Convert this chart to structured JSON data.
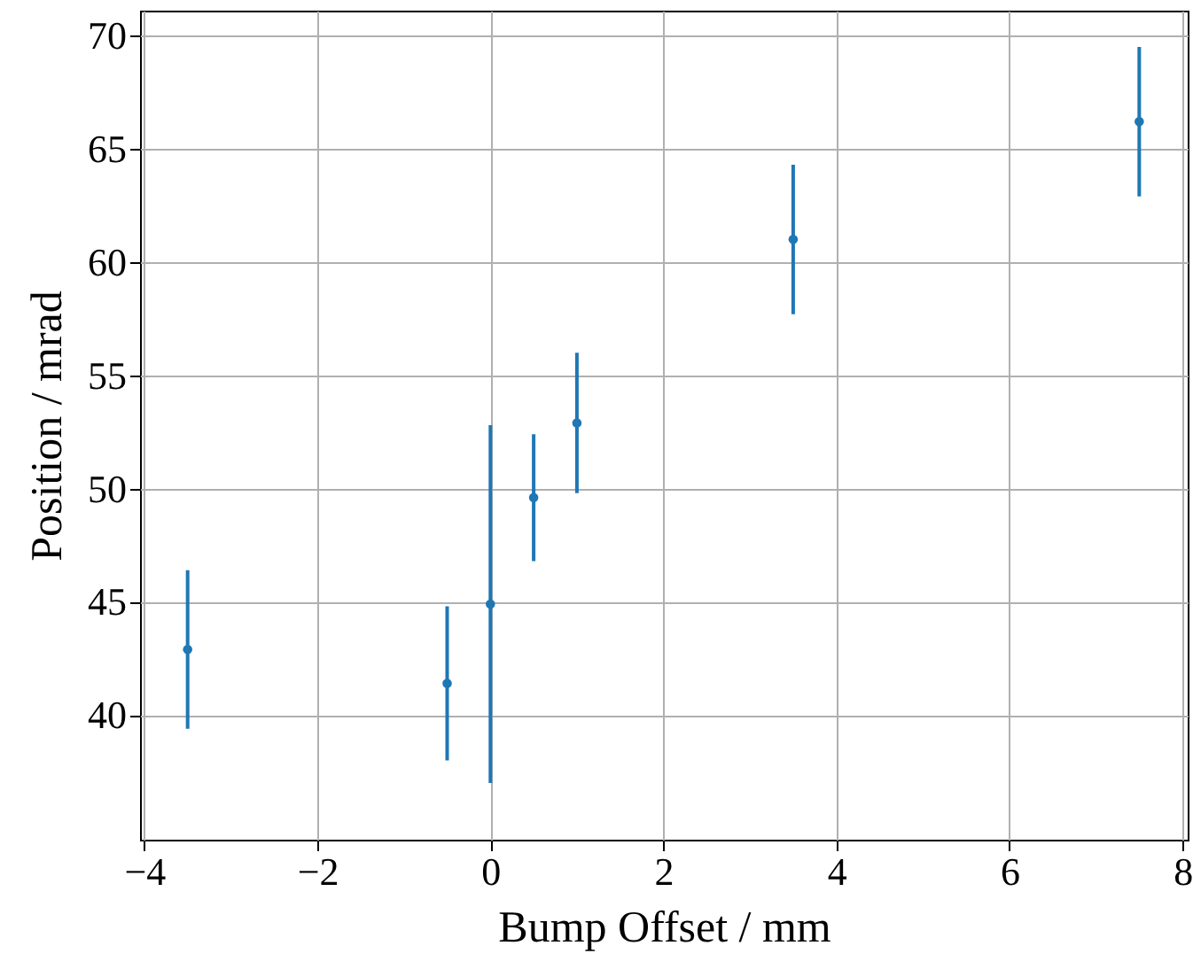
{
  "chart_data": {
    "type": "scatter",
    "xlabel": "Bump Offset / mm",
    "ylabel": "Position / mrad",
    "x": [
      -3.5,
      -0.5,
      0,
      0.5,
      1,
      3.5,
      7.5
    ],
    "series": [
      {
        "color": "#1f77b4",
        "values": [
          42.9,
          41.4,
          44.9,
          49.6,
          52.9,
          61.0,
          66.2
        ],
        "errors": [
          3.5,
          3.4,
          7.9,
          2.8,
          3.1,
          3.3,
          3.3
        ]
      }
    ],
    "xlim": [
      -4.05,
      8.06
    ],
    "xticks": [
      {
        "value": -4,
        "label": "−4"
      },
      {
        "value": -2,
        "label": "−2"
      },
      0,
      2,
      4,
      6,
      8
    ],
    "ylim": [
      34.5,
      71.1
    ],
    "yticks": [
      40,
      45,
      50,
      55,
      60,
      65,
      70
    ],
    "grid": true,
    "marker": "circle"
  }
}
